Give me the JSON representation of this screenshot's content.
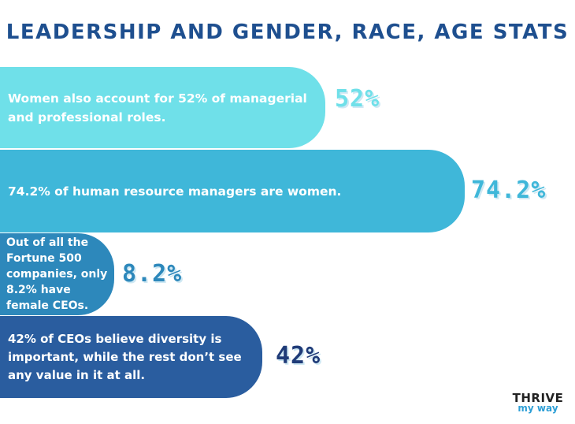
{
  "title": "LEADERSHIP AND GENDER, RACE, AGE STATS",
  "items": [
    {
      "text": "Women also account for 52% of managerial and professional roles.",
      "value": "52%"
    },
    {
      "text": "74.2% of human resource managers are women.",
      "value": "74.2%"
    },
    {
      "text": "Out of all the Fortune 500 companies, only 8.2% have female CEOs.",
      "value": "8.2%"
    },
    {
      "text": "42% of CEOs believe diversity is important, while the rest don’t see any value in it at all.",
      "value": "42%"
    }
  ],
  "logo": {
    "name": "THRIVE",
    "tagline": "my way"
  }
}
